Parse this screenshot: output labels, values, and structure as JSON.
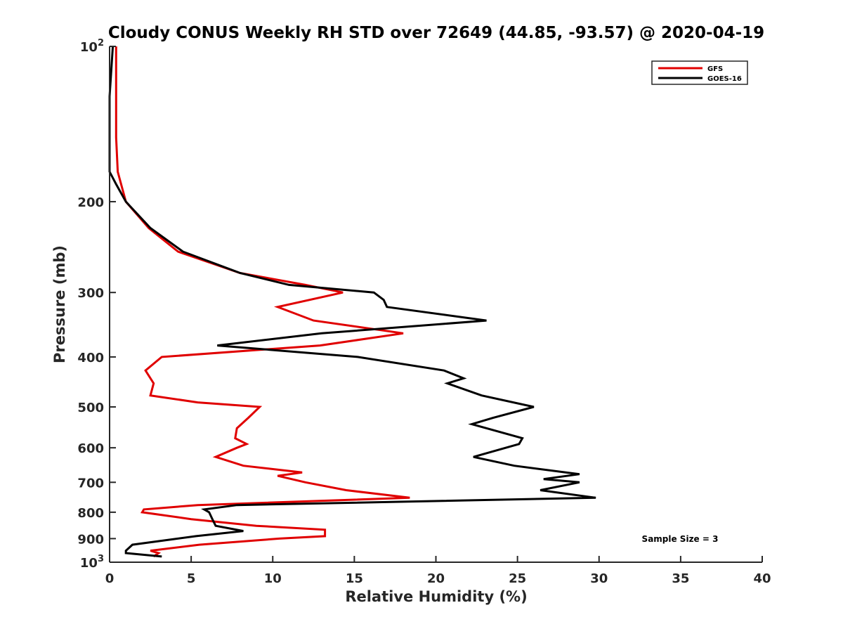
{
  "chart_data": {
    "type": "line",
    "title": "Cloudy CONUS Weekly RH STD over 72649 (44.85, -93.57) @ 2020-04-19",
    "xlabel": "Relative Humidity (%)",
    "ylabel": "Pressure (mb)",
    "xlim": [
      0,
      40
    ],
    "ylim": [
      100,
      1000
    ],
    "y_scale": "log",
    "y_reversed": true,
    "grid": false,
    "legend_position": "top-right",
    "x_ticks": [
      0,
      5,
      10,
      15,
      20,
      25,
      30,
      35,
      40
    ],
    "x_tick_labels": [
      "0",
      "5",
      "10",
      "15",
      "20",
      "25",
      "30",
      "35",
      "40"
    ],
    "y_ticks": [
      100,
      200,
      300,
      400,
      500,
      600,
      700,
      800,
      900,
      1000
    ],
    "y_tick_labels": [
      {
        "base": "10",
        "exp": "2"
      },
      {
        "base": "200",
        "exp": ""
      },
      {
        "base": "300",
        "exp": ""
      },
      {
        "base": "400",
        "exp": ""
      },
      {
        "base": "500",
        "exp": ""
      },
      {
        "base": "600",
        "exp": ""
      },
      {
        "base": "700",
        "exp": ""
      },
      {
        "base": "800",
        "exp": ""
      },
      {
        "base": "900",
        "exp": ""
      },
      {
        "base": "10",
        "exp": "3"
      }
    ],
    "annotation": "Sample Size = 3",
    "series": [
      {
        "name": "GFS",
        "color": "#e00000",
        "points": [
          [
            0.4,
            100
          ],
          [
            0.4,
            125
          ],
          [
            0.4,
            150
          ],
          [
            0.5,
            175
          ],
          [
            1.0,
            200
          ],
          [
            2.4,
            225
          ],
          [
            4.2,
            250
          ],
          [
            8.0,
            275
          ],
          [
            12.0,
            290
          ],
          [
            14.3,
            300
          ],
          [
            10.3,
            320
          ],
          [
            12.5,
            340
          ],
          [
            18.0,
            360
          ],
          [
            12.9,
            380
          ],
          [
            3.2,
            400
          ],
          [
            2.2,
            425
          ],
          [
            2.7,
            450
          ],
          [
            2.5,
            475
          ],
          [
            5.4,
            490
          ],
          [
            9.2,
            500
          ],
          [
            8.5,
            525
          ],
          [
            7.8,
            550
          ],
          [
            7.7,
            575
          ],
          [
            8.4,
            590
          ],
          [
            7.8,
            600
          ],
          [
            6.5,
            625
          ],
          [
            8.2,
            650
          ],
          [
            11.8,
            670
          ],
          [
            10.3,
            680
          ],
          [
            12.0,
            700
          ],
          [
            14.5,
            725
          ],
          [
            18.4,
            750
          ],
          [
            5.4,
            775
          ],
          [
            2.1,
            790
          ],
          [
            2.0,
            800
          ],
          [
            5.0,
            825
          ],
          [
            9.0,
            850
          ],
          [
            13.2,
            865
          ],
          [
            13.2,
            890
          ],
          [
            10.4,
            900
          ],
          [
            5.5,
            925
          ],
          [
            2.5,
            950
          ],
          [
            3.0,
            960
          ],
          [
            2.7,
            975
          ]
        ]
      },
      {
        "name": "GOES-16",
        "color": "#000000",
        "points": [
          [
            0.2,
            100
          ],
          [
            0.0,
            125
          ],
          [
            0.0,
            150
          ],
          [
            0.0,
            175
          ],
          [
            0.4,
            185
          ],
          [
            1.0,
            200
          ],
          [
            2.5,
            225
          ],
          [
            4.5,
            250
          ],
          [
            8.0,
            275
          ],
          [
            11.0,
            290
          ],
          [
            16.2,
            300
          ],
          [
            16.8,
            310
          ],
          [
            17.0,
            320
          ],
          [
            23.1,
            340
          ],
          [
            13.0,
            360
          ],
          [
            6.6,
            380
          ],
          [
            15.2,
            400
          ],
          [
            20.5,
            425
          ],
          [
            21.7,
            440
          ],
          [
            20.7,
            450
          ],
          [
            22.8,
            475
          ],
          [
            26.0,
            500
          ],
          [
            23.5,
            525
          ],
          [
            22.2,
            540
          ],
          [
            25.3,
            575
          ],
          [
            25.1,
            590
          ],
          [
            22.3,
            625
          ],
          [
            24.8,
            650
          ],
          [
            28.8,
            675
          ],
          [
            26.6,
            690
          ],
          [
            28.8,
            700
          ],
          [
            26.4,
            725
          ],
          [
            29.8,
            750
          ],
          [
            7.8,
            775
          ],
          [
            5.8,
            790
          ],
          [
            6.1,
            800
          ],
          [
            6.3,
            825
          ],
          [
            6.5,
            850
          ],
          [
            8.2,
            870
          ],
          [
            5.3,
            890
          ],
          [
            1.4,
            925
          ],
          [
            1.0,
            950
          ],
          [
            1.0,
            960
          ],
          [
            3.2,
            975
          ]
        ]
      }
    ]
  }
}
